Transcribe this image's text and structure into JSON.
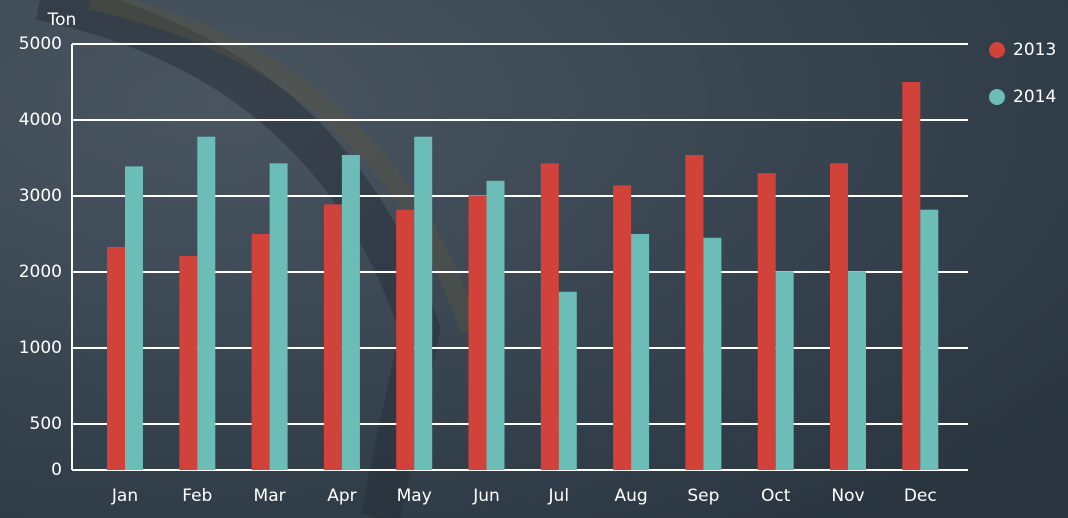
{
  "chart_data": {
    "type": "bar",
    "y_label": "Ton",
    "categories": [
      "Jan",
      "Feb",
      "Mar",
      "Apr",
      "May",
      "Jun",
      "Jul",
      "Aug",
      "Sep",
      "Oct",
      "Nov",
      "Dec"
    ],
    "series": [
      {
        "name": "2013",
        "color": "#d1433a",
        "values": [
          2330,
          2210,
          2500,
          2890,
          2820,
          3010,
          3430,
          3140,
          3540,
          3300,
          3430,
          4500
        ]
      },
      {
        "name": "2014",
        "color": "#6cbcb8",
        "values": [
          3390,
          3780,
          3430,
          3540,
          3780,
          3200,
          1740,
          2500,
          2450,
          2010,
          2010,
          2820
        ]
      }
    ],
    "ylim": [
      0,
      5000
    ],
    "yticks": [
      0,
      500,
      1000,
      2000,
      3000,
      4000,
      5000
    ],
    "grid": true,
    "legend": "top-right"
  }
}
